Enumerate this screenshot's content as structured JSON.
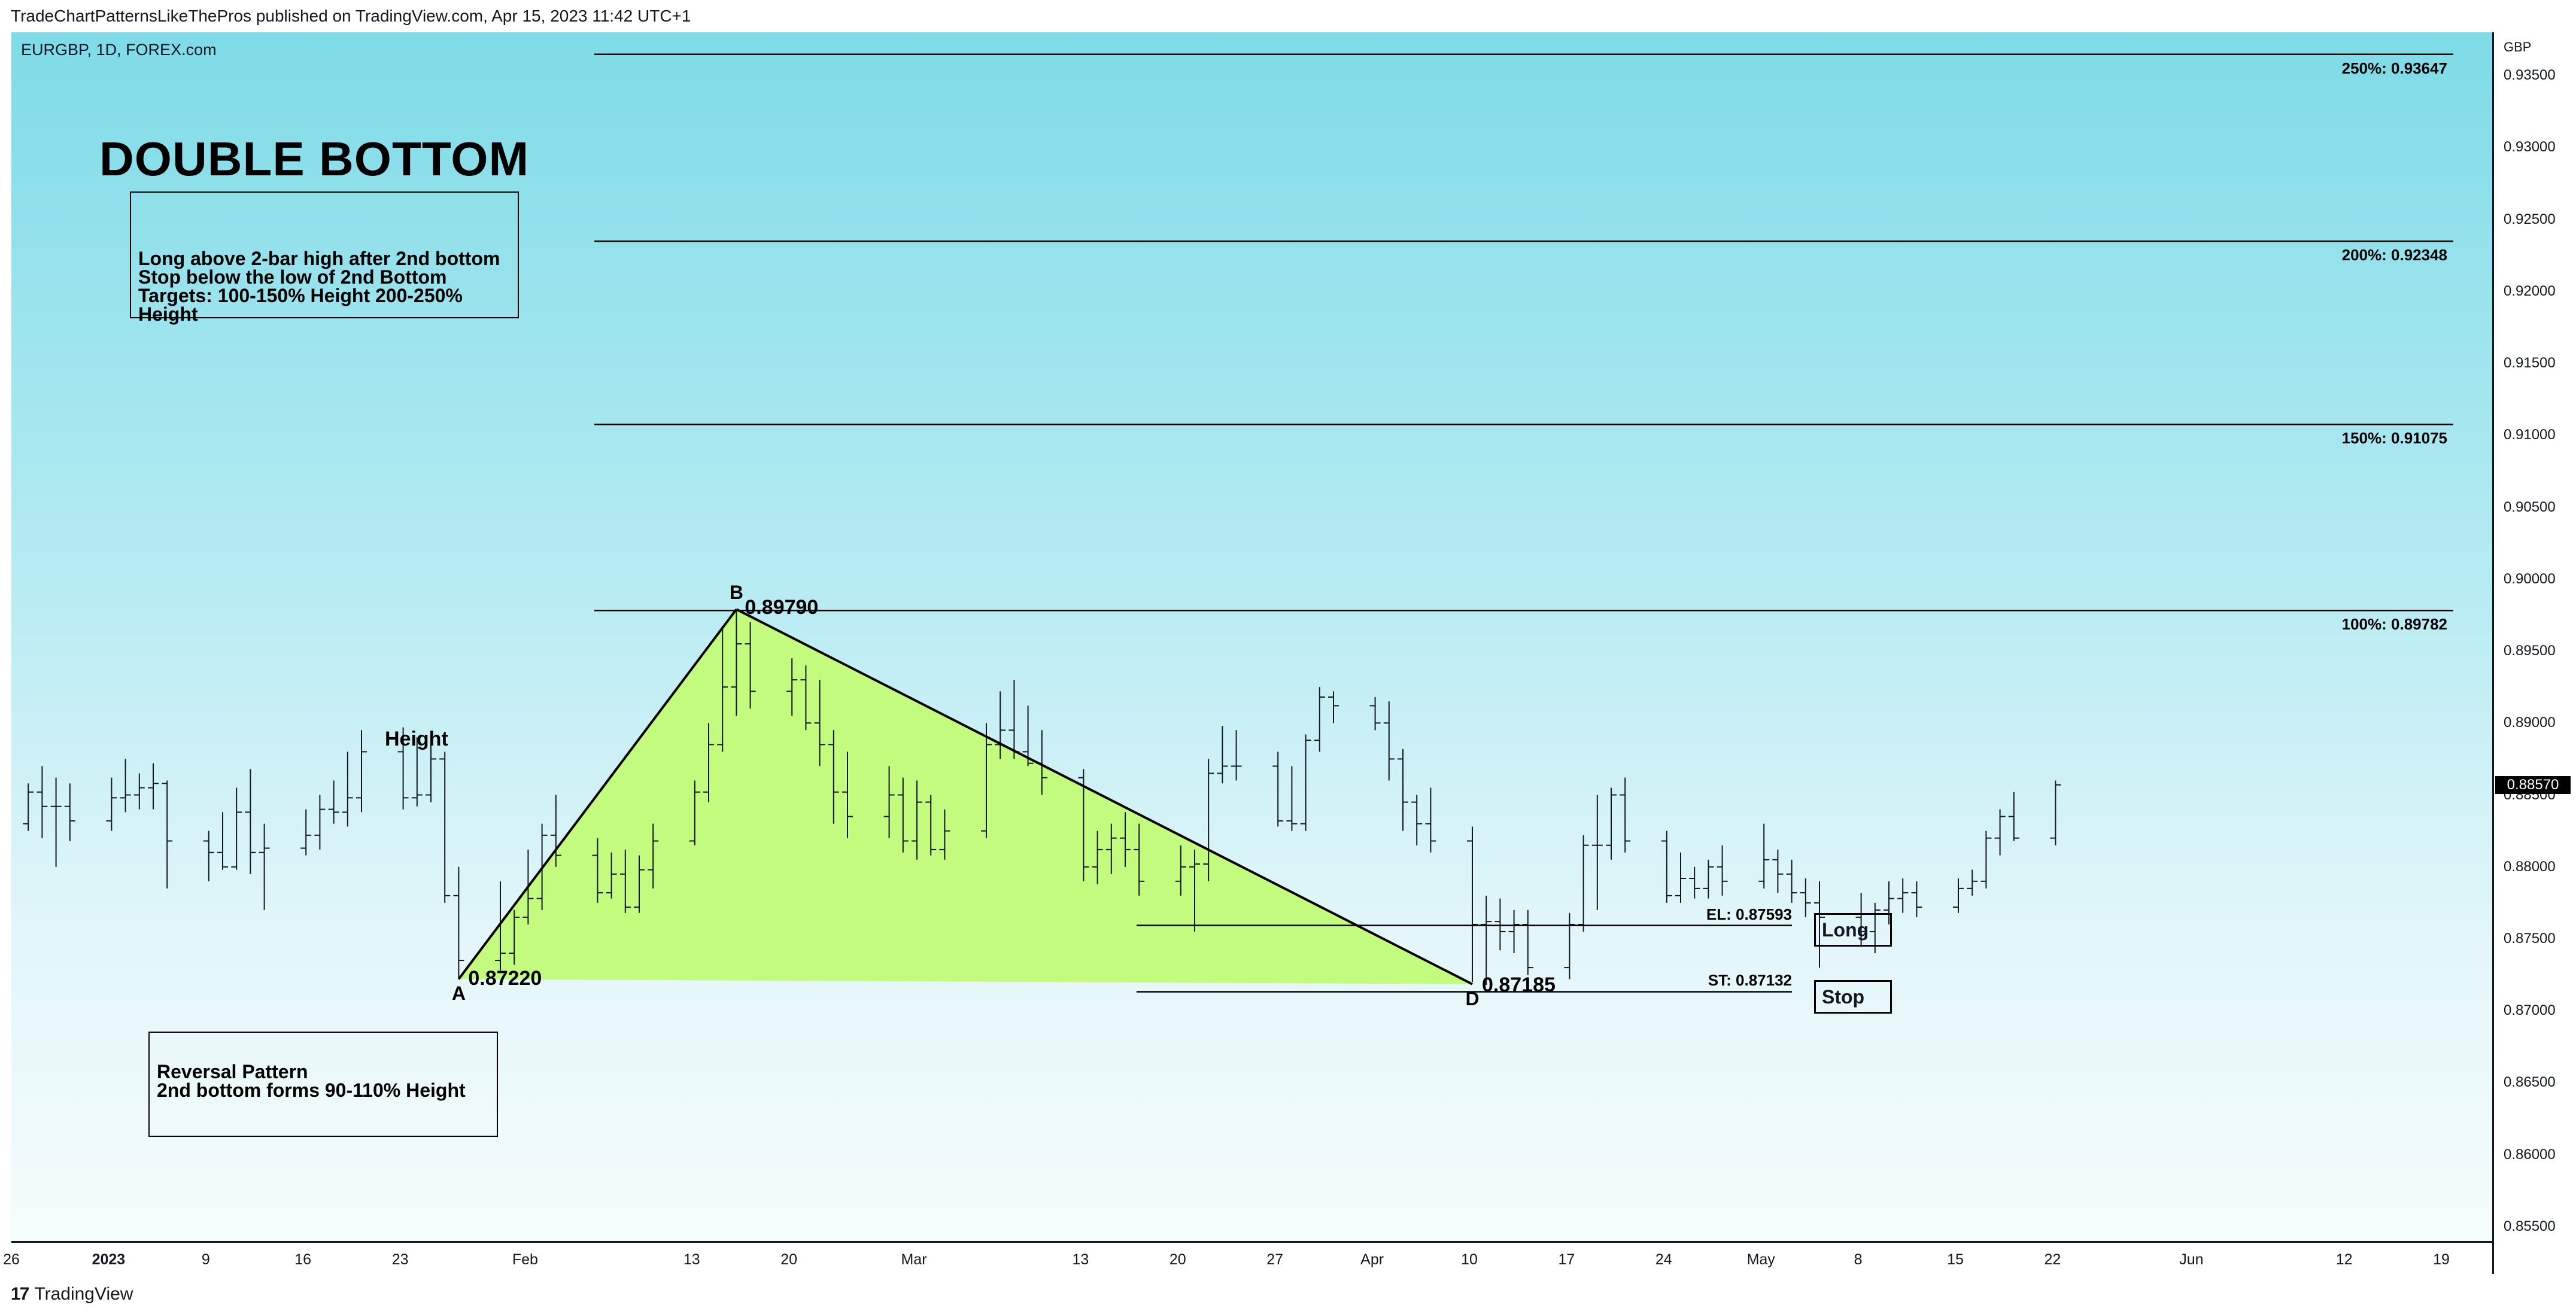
{
  "header": {
    "published_line": "TradeChartPatternsLikeThePros published on TradingView.com, Apr 15, 2023 11:42 UTC+1"
  },
  "symbol_label": "EURGBP, 1D, FOREX.com",
  "footer": {
    "brand": "TradingView",
    "logo_icon": "tradingview-logo-icon"
  },
  "colors": {
    "background_top": "#7edbe7",
    "background_bottom": "#f5fcfd",
    "triangle_fill": "#c2fb7d",
    "bars": "#131722"
  },
  "annotations": {
    "title": "DOUBLE BOTTOM",
    "rules": [
      "Long above 2-bar high after 2nd bottom",
      "Stop below the low of 2nd Bottom",
      "Targets: 100-150% Height 200-250%",
      "Height"
    ],
    "reversal": [
      "Reversal Pattern",
      "2nd bottom forms 90-110% Height"
    ],
    "height_label": "Height",
    "long_button": "Long",
    "stop_button": "Stop"
  },
  "chart_data": {
    "type": "ohlc",
    "symbol": "EURGBP",
    "timeframe": "1D",
    "exchange": "FOREX.com",
    "currency": "GBP",
    "ylim": [
      0.854,
      0.938
    ],
    "last_price": "0.88570",
    "y_ticks": [
      "0.93500",
      "0.93000",
      "0.92500",
      "0.92000",
      "0.91500",
      "0.91000",
      "0.90500",
      "0.90000",
      "0.89500",
      "0.89000",
      "0.88500",
      "0.88000",
      "0.87500",
      "0.87000",
      "0.86500",
      "0.86000",
      "0.85500"
    ],
    "x_ticks": [
      {
        "label": "26",
        "date": "2022-12-26"
      },
      {
        "label": "2023",
        "date": "2023-01-02",
        "bold": true
      },
      {
        "label": "9",
        "date": "2023-01-09"
      },
      {
        "label": "16",
        "date": "2023-01-16"
      },
      {
        "label": "23",
        "date": "2023-01-23"
      },
      {
        "label": "Feb",
        "date": "2023-02-01"
      },
      {
        "label": "13",
        "date": "2023-02-13"
      },
      {
        "label": "20",
        "date": "2023-02-20"
      },
      {
        "label": "Mar",
        "date": "2023-03-01"
      },
      {
        "label": "13",
        "date": "2023-03-13"
      },
      {
        "label": "20",
        "date": "2023-03-20"
      },
      {
        "label": "27",
        "date": "2023-03-27"
      },
      {
        "label": "Apr",
        "date": "2023-04-03"
      },
      {
        "label": "10",
        "date": "2023-04-10"
      },
      {
        "label": "17",
        "date": "2023-04-17"
      },
      {
        "label": "24",
        "date": "2023-04-24"
      },
      {
        "label": "May",
        "date": "2023-05-01"
      },
      {
        "label": "8",
        "date": "2023-05-08"
      },
      {
        "label": "15",
        "date": "2023-05-15"
      },
      {
        "label": "22",
        "date": "2023-05-22"
      },
      {
        "label": "Jun",
        "date": "2023-06-01"
      },
      {
        "label": "12",
        "date": "2023-06-12"
      },
      {
        "label": "19",
        "date": "2023-06-19"
      }
    ],
    "bars": [
      {
        "date": "2022-12-22",
        "o": 0.882,
        "h": 0.8838,
        "l": 0.879,
        "c": 0.8822
      },
      {
        "date": "2022-12-23",
        "o": 0.8822,
        "h": 0.8845,
        "l": 0.8818,
        "c": 0.883
      },
      {
        "date": "2022-12-27",
        "o": 0.883,
        "h": 0.8858,
        "l": 0.8825,
        "c": 0.8852
      },
      {
        "date": "2022-12-28",
        "o": 0.8852,
        "h": 0.887,
        "l": 0.882,
        "c": 0.8842
      },
      {
        "date": "2022-12-29",
        "o": 0.8842,
        "h": 0.8862,
        "l": 0.88,
        "c": 0.8842
      },
      {
        "date": "2022-12-30",
        "o": 0.8842,
        "h": 0.8858,
        "l": 0.8818,
        "c": 0.8832
      },
      {
        "date": "2023-01-02",
        "o": 0.8832,
        "h": 0.8862,
        "l": 0.8825,
        "c": 0.8848
      },
      {
        "date": "2023-01-03",
        "o": 0.8848,
        "h": 0.8875,
        "l": 0.8838,
        "c": 0.885
      },
      {
        "date": "2023-01-04",
        "o": 0.885,
        "h": 0.8865,
        "l": 0.884,
        "c": 0.8855
      },
      {
        "date": "2023-01-05",
        "o": 0.8855,
        "h": 0.8872,
        "l": 0.884,
        "c": 0.8858
      },
      {
        "date": "2023-01-06",
        "o": 0.8858,
        "h": 0.886,
        "l": 0.8785,
        "c": 0.8818
      },
      {
        "date": "2023-01-09",
        "o": 0.8818,
        "h": 0.8825,
        "l": 0.879,
        "c": 0.881
      },
      {
        "date": "2023-01-10",
        "o": 0.881,
        "h": 0.8838,
        "l": 0.8798,
        "c": 0.88
      },
      {
        "date": "2023-01-11",
        "o": 0.88,
        "h": 0.8855,
        "l": 0.8798,
        "c": 0.8838
      },
      {
        "date": "2023-01-12",
        "o": 0.8838,
        "h": 0.8868,
        "l": 0.8795,
        "c": 0.881
      },
      {
        "date": "2023-01-13",
        "o": 0.881,
        "h": 0.883,
        "l": 0.877,
        "c": 0.8813
      },
      {
        "date": "2023-01-16",
        "o": 0.8813,
        "h": 0.884,
        "l": 0.8808,
        "c": 0.8822
      },
      {
        "date": "2023-01-17",
        "o": 0.8822,
        "h": 0.885,
        "l": 0.8812,
        "c": 0.884
      },
      {
        "date": "2023-01-18",
        "o": 0.884,
        "h": 0.886,
        "l": 0.883,
        "c": 0.8838
      },
      {
        "date": "2023-01-19",
        "o": 0.8838,
        "h": 0.888,
        "l": 0.8828,
        "c": 0.8848
      },
      {
        "date": "2023-01-20",
        "o": 0.8848,
        "h": 0.8895,
        "l": 0.8838,
        "c": 0.888
      },
      {
        "date": "2023-01-23",
        "o": 0.888,
        "h": 0.8897,
        "l": 0.884,
        "c": 0.8848
      },
      {
        "date": "2023-01-24",
        "o": 0.8848,
        "h": 0.889,
        "l": 0.8842,
        "c": 0.885
      },
      {
        "date": "2023-01-25",
        "o": 0.885,
        "h": 0.8888,
        "l": 0.8845,
        "c": 0.8875
      },
      {
        "date": "2023-01-26",
        "o": 0.8875,
        "h": 0.888,
        "l": 0.8775,
        "c": 0.878
      },
      {
        "date": "2023-01-27",
        "o": 0.878,
        "h": 0.88,
        "l": 0.8722,
        "c": 0.8735
      },
      {
        "date": "2023-01-30",
        "o": 0.8735,
        "h": 0.879,
        "l": 0.8728,
        "c": 0.874
      },
      {
        "date": "2023-01-31",
        "o": 0.874,
        "h": 0.877,
        "l": 0.8732,
        "c": 0.8765
      },
      {
        "date": "2023-02-01",
        "o": 0.8765,
        "h": 0.8812,
        "l": 0.876,
        "c": 0.8778
      },
      {
        "date": "2023-02-02",
        "o": 0.8778,
        "h": 0.883,
        "l": 0.877,
        "c": 0.8822
      },
      {
        "date": "2023-02-03",
        "o": 0.8822,
        "h": 0.885,
        "l": 0.88,
        "c": 0.8808
      },
      {
        "date": "2023-02-06",
        "o": 0.8808,
        "h": 0.882,
        "l": 0.8775,
        "c": 0.8782
      },
      {
        "date": "2023-02-07",
        "o": 0.8782,
        "h": 0.881,
        "l": 0.8778,
        "c": 0.8795
      },
      {
        "date": "2023-02-08",
        "o": 0.8795,
        "h": 0.8812,
        "l": 0.8768,
        "c": 0.8772
      },
      {
        "date": "2023-02-09",
        "o": 0.8772,
        "h": 0.8808,
        "l": 0.8768,
        "c": 0.8798
      },
      {
        "date": "2023-02-10",
        "o": 0.8798,
        "h": 0.883,
        "l": 0.8785,
        "c": 0.8818
      },
      {
        "date": "2023-02-13",
        "o": 0.8818,
        "h": 0.886,
        "l": 0.8815,
        "c": 0.8852
      },
      {
        "date": "2023-02-14",
        "o": 0.8852,
        "h": 0.89,
        "l": 0.8845,
        "c": 0.8885
      },
      {
        "date": "2023-02-15",
        "o": 0.8885,
        "h": 0.8965,
        "l": 0.888,
        "c": 0.8925
      },
      {
        "date": "2023-02-16",
        "o": 0.8925,
        "h": 0.8979,
        "l": 0.8905,
        "c": 0.8955
      },
      {
        "date": "2023-02-17",
        "o": 0.8955,
        "h": 0.897,
        "l": 0.891,
        "c": 0.8922
      },
      {
        "date": "2023-02-20",
        "o": 0.8922,
        "h": 0.8945,
        "l": 0.8905,
        "c": 0.893
      },
      {
        "date": "2023-02-21",
        "o": 0.893,
        "h": 0.894,
        "l": 0.8895,
        "c": 0.89
      },
      {
        "date": "2023-02-22",
        "o": 0.89,
        "h": 0.893,
        "l": 0.887,
        "c": 0.8885
      },
      {
        "date": "2023-02-23",
        "o": 0.8885,
        "h": 0.8895,
        "l": 0.883,
        "c": 0.8852
      },
      {
        "date": "2023-02-24",
        "o": 0.8852,
        "h": 0.888,
        "l": 0.882,
        "c": 0.8835
      },
      {
        "date": "2023-02-27",
        "o": 0.8835,
        "h": 0.887,
        "l": 0.882,
        "c": 0.885
      },
      {
        "date": "2023-02-28",
        "o": 0.885,
        "h": 0.8862,
        "l": 0.881,
        "c": 0.8818
      },
      {
        "date": "2023-03-01",
        "o": 0.8818,
        "h": 0.886,
        "l": 0.8805,
        "c": 0.8845
      },
      {
        "date": "2023-03-02",
        "o": 0.8845,
        "h": 0.885,
        "l": 0.8808,
        "c": 0.8812
      },
      {
        "date": "2023-03-03",
        "o": 0.8812,
        "h": 0.884,
        "l": 0.8805,
        "c": 0.8825
      },
      {
        "date": "2023-03-06",
        "o": 0.8825,
        "h": 0.89,
        "l": 0.882,
        "c": 0.8885
      },
      {
        "date": "2023-03-07",
        "o": 0.8885,
        "h": 0.8922,
        "l": 0.8875,
        "c": 0.8895
      },
      {
        "date": "2023-03-08",
        "o": 0.8895,
        "h": 0.893,
        "l": 0.8875,
        "c": 0.888
      },
      {
        "date": "2023-03-09",
        "o": 0.888,
        "h": 0.8912,
        "l": 0.887,
        "c": 0.8872
      },
      {
        "date": "2023-03-10",
        "o": 0.8872,
        "h": 0.8895,
        "l": 0.885,
        "c": 0.8862
      },
      {
        "date": "2023-03-13",
        "o": 0.8862,
        "h": 0.8868,
        "l": 0.879,
        "c": 0.88
      },
      {
        "date": "2023-03-14",
        "o": 0.88,
        "h": 0.8825,
        "l": 0.8788,
        "c": 0.8812
      },
      {
        "date": "2023-03-15",
        "o": 0.8812,
        "h": 0.883,
        "l": 0.8795,
        "c": 0.882
      },
      {
        "date": "2023-03-16",
        "o": 0.882,
        "h": 0.8838,
        "l": 0.88,
        "c": 0.8812
      },
      {
        "date": "2023-03-17",
        "o": 0.8812,
        "h": 0.883,
        "l": 0.878,
        "c": 0.879
      },
      {
        "date": "2023-03-20",
        "o": 0.879,
        "h": 0.8815,
        "l": 0.878,
        "c": 0.88
      },
      {
        "date": "2023-03-21",
        "o": 0.88,
        "h": 0.8812,
        "l": 0.8755,
        "c": 0.8802
      },
      {
        "date": "2023-03-22",
        "o": 0.8802,
        "h": 0.8875,
        "l": 0.879,
        "c": 0.8865
      },
      {
        "date": "2023-03-23",
        "o": 0.8865,
        "h": 0.8898,
        "l": 0.8858,
        "c": 0.887
      },
      {
        "date": "2023-03-24",
        "o": 0.887,
        "h": 0.8895,
        "l": 0.886,
        "c": 0.887
      },
      {
        "date": "2023-03-27",
        "o": 0.887,
        "h": 0.888,
        "l": 0.8828,
        "c": 0.8832
      },
      {
        "date": "2023-03-28",
        "o": 0.8832,
        "h": 0.887,
        "l": 0.8825,
        "c": 0.883
      },
      {
        "date": "2023-03-29",
        "o": 0.883,
        "h": 0.8892,
        "l": 0.8825,
        "c": 0.8888
      },
      {
        "date": "2023-03-30",
        "o": 0.8888,
        "h": 0.8925,
        "l": 0.888,
        "c": 0.8918
      },
      {
        "date": "2023-03-31",
        "o": 0.8918,
        "h": 0.8922,
        "l": 0.89,
        "c": 0.8912
      },
      {
        "date": "2023-04-03",
        "o": 0.8912,
        "h": 0.8918,
        "l": 0.8895,
        "c": 0.89
      },
      {
        "date": "2023-04-04",
        "o": 0.89,
        "h": 0.8915,
        "l": 0.886,
        "c": 0.8875
      },
      {
        "date": "2023-04-05",
        "o": 0.8875,
        "h": 0.8882,
        "l": 0.8825,
        "c": 0.8845
      },
      {
        "date": "2023-04-06",
        "o": 0.8845,
        "h": 0.885,
        "l": 0.8815,
        "c": 0.883
      },
      {
        "date": "2023-04-07",
        "o": 0.883,
        "h": 0.8855,
        "l": 0.881,
        "c": 0.8818
      },
      {
        "date": "2023-04-10",
        "o": 0.8818,
        "h": 0.8828,
        "l": 0.872,
        "c": 0.876
      },
      {
        "date": "2023-04-11",
        "o": 0.876,
        "h": 0.878,
        "l": 0.8718,
        "c": 0.8762
      },
      {
        "date": "2023-04-12",
        "o": 0.8762,
        "h": 0.8778,
        "l": 0.8742,
        "c": 0.8755
      },
      {
        "date": "2023-04-13",
        "o": 0.8755,
        "h": 0.877,
        "l": 0.874,
        "c": 0.876
      },
      {
        "date": "2023-04-14",
        "o": 0.876,
        "h": 0.877,
        "l": 0.8725,
        "c": 0.873
      },
      {
        "date": "2023-04-17",
        "o": 0.873,
        "h": 0.8768,
        "l": 0.8722,
        "c": 0.876
      },
      {
        "date": "2023-04-18",
        "o": 0.876,
        "h": 0.8822,
        "l": 0.8755,
        "c": 0.8815
      },
      {
        "date": "2023-04-19",
        "o": 0.8815,
        "h": 0.885,
        "l": 0.877,
        "c": 0.8815
      },
      {
        "date": "2023-04-20",
        "o": 0.8815,
        "h": 0.8855,
        "l": 0.8805,
        "c": 0.885
      },
      {
        "date": "2023-04-21",
        "o": 0.885,
        "h": 0.8862,
        "l": 0.881,
        "c": 0.8818
      },
      {
        "date": "2023-04-24",
        "o": 0.8818,
        "h": 0.8825,
        "l": 0.8775,
        "c": 0.878
      },
      {
        "date": "2023-04-25",
        "o": 0.878,
        "h": 0.881,
        "l": 0.8775,
        "c": 0.8792
      },
      {
        "date": "2023-04-26",
        "o": 0.8792,
        "h": 0.88,
        "l": 0.8778,
        "c": 0.8785
      },
      {
        "date": "2023-04-27",
        "o": 0.8785,
        "h": 0.8805,
        "l": 0.8778,
        "c": 0.88
      },
      {
        "date": "2023-04-28",
        "o": 0.88,
        "h": 0.8815,
        "l": 0.878,
        "c": 0.879
      },
      {
        "date": "2023-05-01",
        "o": 0.879,
        "h": 0.883,
        "l": 0.8785,
        "c": 0.8805
      },
      {
        "date": "2023-05-02",
        "o": 0.8805,
        "h": 0.8812,
        "l": 0.8782,
        "c": 0.8795
      },
      {
        "date": "2023-05-03",
        "o": 0.8795,
        "h": 0.8805,
        "l": 0.8775,
        "c": 0.8782
      },
      {
        "date": "2023-05-04",
        "o": 0.8782,
        "h": 0.8792,
        "l": 0.8765,
        "c": 0.8775
      },
      {
        "date": "2023-05-05",
        "o": 0.8775,
        "h": 0.879,
        "l": 0.873,
        "c": 0.8765
      },
      {
        "date": "2023-05-08",
        "o": 0.8765,
        "h": 0.8782,
        "l": 0.8745,
        "c": 0.8755
      },
      {
        "date": "2023-05-09",
        "o": 0.8755,
        "h": 0.8775,
        "l": 0.874,
        "c": 0.877
      },
      {
        "date": "2023-05-10",
        "o": 0.877,
        "h": 0.879,
        "l": 0.876,
        "c": 0.8778
      },
      {
        "date": "2023-05-11",
        "o": 0.8778,
        "h": 0.8792,
        "l": 0.8768,
        "c": 0.8782
      },
      {
        "date": "2023-05-12",
        "o": 0.8782,
        "h": 0.879,
        "l": 0.8765,
        "c": 0.8772
      },
      {
        "date": "2023-05-15",
        "o": 0.8772,
        "h": 0.8792,
        "l": 0.8768,
        "c": 0.8785
      },
      {
        "date": "2023-05-16",
        "o": 0.8785,
        "h": 0.8798,
        "l": 0.878,
        "c": 0.879
      },
      {
        "date": "2023-05-17",
        "o": 0.879,
        "h": 0.8825,
        "l": 0.8785,
        "c": 0.882
      },
      {
        "date": "2023-05-18",
        "o": 0.882,
        "h": 0.884,
        "l": 0.8808,
        "c": 0.8835
      },
      {
        "date": "2023-05-19",
        "o": 0.8835,
        "h": 0.8852,
        "l": 0.8818,
        "c": 0.882
      },
      {
        "date": "2023-05-22",
        "o": 0.882,
        "h": 0.886,
        "l": 0.8815,
        "c": 0.8857
      }
    ],
    "pattern": {
      "A": {
        "date": "2023-01-27",
        "price": 0.8722,
        "letter": "A",
        "label": "0.87220"
      },
      "B": {
        "date": "2023-02-16",
        "price": 0.8979,
        "letter": "B",
        "label": "0.89790"
      },
      "D": {
        "date": "2023-04-10",
        "price": 0.87185,
        "letter": "D",
        "label": "0.87185"
      }
    },
    "fib_levels": [
      {
        "label": "250%: 0.93647",
        "price": 0.93647
      },
      {
        "label": "200%: 0.92348",
        "price": 0.92348
      },
      {
        "label": "150%: 0.91075",
        "price": 0.91075
      },
      {
        "label": "100%: 0.89782",
        "price": 0.89782
      }
    ],
    "entry": {
      "label": "EL: 0.87593",
      "price": 0.87593
    },
    "stop": {
      "label": "ST: 0.87132",
      "price": 0.87132
    }
  }
}
